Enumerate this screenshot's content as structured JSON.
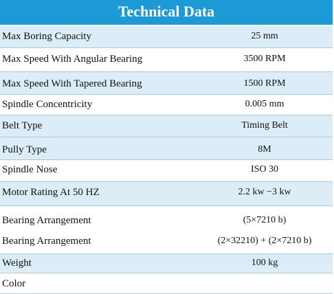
{
  "header": {
    "title": "Technical Data"
  },
  "table": {
    "rows": [
      {
        "label": "Max Boring Capacity",
        "value": "25 mm"
      },
      {
        "label": "Max Speed With Angular Bearing",
        "value": "3500 RPM"
      },
      {
        "label": "Max Speed With Tapered Bearing",
        "value": "1500 RPM"
      },
      {
        "label": "Spindle Concentricity",
        "value": "0.005 mm"
      },
      {
        "label": "Belt Type",
        "value": "Timing Belt"
      },
      {
        "label": "Pully Type",
        "value": "8M"
      },
      {
        "label": "Spindle Nose",
        "value": "ISO 30"
      },
      {
        "label": "Motor Rating At 50 HZ",
        "value": "2.2 kw −3 kw"
      },
      {
        "label": "Bearing Arrangement",
        "value": "(5×7210 b)"
      },
      {
        "label": "Bearing Arrangement",
        "value": "(2×32210) + (2×7210 b)"
      },
      {
        "label": "Weight",
        "value": "100 kg"
      },
      {
        "label": "Color"
      }
    ]
  }
}
